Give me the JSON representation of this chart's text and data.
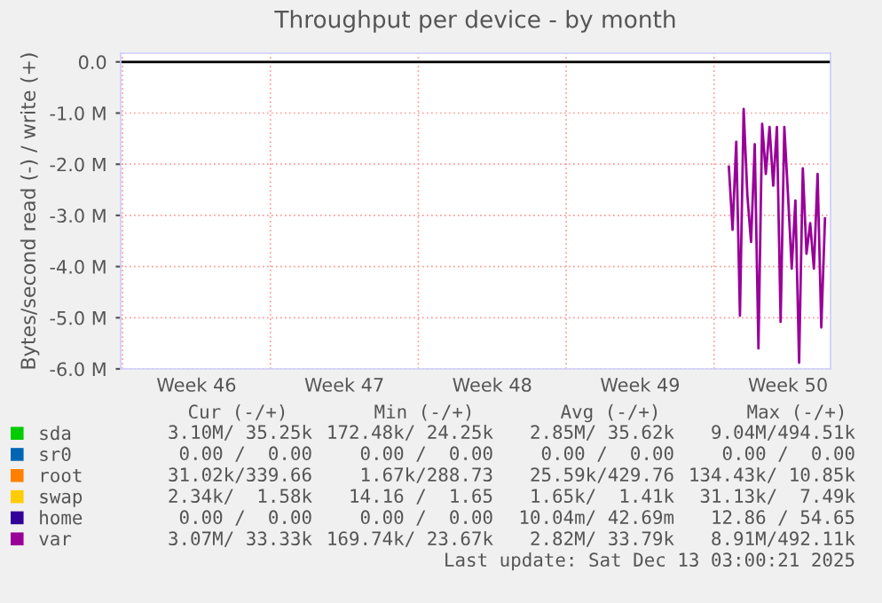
{
  "chart_data": {
    "type": "line",
    "title": "Throughput per device - by month",
    "ylabel": "Bytes/second read (-) / write (+)",
    "categories": [
      null,
      null,
      null,
      null,
      null,
      null,
      null,
      null,
      null,
      null,
      null,
      null,
      null,
      null,
      null,
      null,
      null,
      null,
      null,
      null,
      "Week 46",
      null,
      null,
      null,
      null,
      null,
      null,
      null,
      null,
      null,
      null,
      null,
      null,
      null,
      null,
      null,
      null,
      null,
      null,
      null,
      null,
      null,
      null,
      null,
      null,
      null,
      null,
      null,
      null,
      null,
      null,
      null,
      null,
      null,
      null,
      null,
      null,
      null,
      null,
      null,
      "Week 47",
      null,
      null,
      null,
      null,
      null,
      null,
      null,
      null,
      null,
      null,
      null,
      null,
      null,
      null,
      null,
      null,
      null,
      null,
      null,
      null,
      null,
      null,
      null,
      null,
      null,
      null,
      null,
      null,
      null,
      null,
      null,
      null,
      null,
      null,
      null,
      null,
      null,
      null,
      null,
      "Week 48",
      null,
      null,
      null,
      null,
      null,
      null,
      null,
      null,
      null,
      null,
      null,
      null,
      null,
      null,
      null,
      null,
      null,
      null,
      null,
      null,
      null,
      null,
      null,
      null,
      null,
      null,
      null,
      null,
      null,
      null,
      null,
      null,
      null,
      null,
      null,
      null,
      null,
      null,
      null,
      "Week 49",
      null,
      null,
      null,
      null,
      null,
      null,
      null,
      null,
      null,
      null,
      null,
      null,
      null,
      null,
      null,
      null,
      null,
      null,
      null,
      null,
      null,
      null,
      null,
      null,
      null,
      null,
      null,
      null,
      null,
      null,
      null,
      null,
      null,
      null,
      null,
      null,
      null,
      null,
      null,
      "Week 50",
      null,
      null,
      null,
      null,
      null,
      null,
      null,
      null,
      null,
      null,
      null
    ],
    "series": [
      {
        "name": "sda",
        "color": "#00cc00",
        "values": [
          null,
          null,
          null,
          null,
          null,
          null,
          null,
          null,
          null,
          null,
          null,
          null,
          null,
          null,
          null,
          null,
          null,
          null,
          null,
          null,
          null,
          null,
          null,
          null,
          null,
          null,
          null,
          null,
          null,
          null,
          null,
          null,
          null,
          null,
          null,
          null,
          null,
          null,
          null,
          null,
          null,
          null,
          null,
          null,
          null,
          null,
          null,
          null,
          null,
          null,
          null,
          null,
          null,
          null,
          null,
          null,
          null,
          null,
          null,
          null,
          null,
          null,
          null,
          null,
          null,
          null,
          null,
          null,
          null,
          null,
          null,
          null,
          null,
          null,
          null,
          null,
          null,
          null,
          null,
          null,
          null,
          null,
          null,
          null,
          null,
          null,
          null,
          null,
          null,
          null,
          null,
          null,
          null,
          null,
          null,
          null,
          null,
          null,
          null,
          null,
          null,
          null,
          null,
          null,
          null,
          null,
          null,
          null,
          null,
          null,
          null,
          null,
          null,
          null,
          null,
          null,
          null,
          null,
          null,
          null,
          null,
          null,
          null,
          null,
          null,
          null,
          null,
          null,
          null,
          null,
          null,
          null,
          null,
          null,
          null,
          null,
          null,
          null,
          null,
          null,
          null,
          null,
          null,
          null,
          null,
          null,
          null,
          null,
          null,
          null,
          null,
          null,
          null,
          null,
          null,
          null,
          null,
          null,
          null,
          null,
          null,
          null,
          null,
          null,
          null,
          null,
          null,
          null,
          null,
          null,
          null,
          null,
          null,
          null,
          null,
          null,
          null,
          null,
          null,
          null,
          null,
          null,
          null,
          null,
          null,
          null,
          null,
          null,
          null,
          null,
          null,
          null
        ]
      },
      {
        "name": "sr0",
        "color": "#0066b3",
        "values": [
          null,
          null,
          null,
          null,
          null,
          null,
          null,
          null,
          null,
          null,
          null,
          null,
          null,
          null,
          null,
          null,
          null,
          null,
          null,
          null,
          null,
          null,
          null,
          null,
          null,
          null,
          null,
          null,
          null,
          null,
          null,
          null,
          null,
          null,
          null,
          null,
          null,
          null,
          null,
          null,
          null,
          null,
          null,
          null,
          null,
          null,
          null,
          null,
          null,
          null,
          null,
          null,
          null,
          null,
          null,
          null,
          null,
          null,
          null,
          null,
          null,
          null,
          null,
          null,
          null,
          null,
          null,
          null,
          null,
          null,
          null,
          null,
          null,
          null,
          null,
          null,
          null,
          null,
          null,
          null,
          null,
          null,
          null,
          null,
          null,
          null,
          null,
          null,
          null,
          null,
          null,
          null,
          null,
          null,
          null,
          null,
          null,
          null,
          null,
          null,
          null,
          null,
          null,
          null,
          null,
          null,
          null,
          null,
          null,
          null,
          null,
          null,
          null,
          null,
          null,
          null,
          null,
          null,
          null,
          null,
          null,
          null,
          null,
          null,
          null,
          null,
          null,
          null,
          null,
          null,
          null,
          null,
          null,
          null,
          null,
          null,
          null,
          null,
          null,
          null,
          null,
          null,
          null,
          null,
          null,
          null,
          null,
          null,
          null,
          null,
          null,
          null,
          null,
          null,
          null,
          null,
          null,
          null,
          null,
          null,
          null,
          null,
          null,
          null,
          null,
          null,
          null,
          null,
          null,
          null,
          null,
          null,
          null,
          null,
          null,
          null,
          null,
          null,
          null,
          null,
          null,
          null,
          null,
          null,
          null,
          null,
          null,
          null,
          null,
          null,
          null,
          null
        ]
      },
      {
        "name": "root",
        "color": "#ff8000",
        "values": [
          null,
          null,
          null,
          null,
          null,
          null,
          null,
          null,
          null,
          null,
          null,
          null,
          null,
          null,
          null,
          null,
          null,
          null,
          null,
          null,
          null,
          null,
          null,
          null,
          null,
          null,
          null,
          null,
          null,
          null,
          null,
          null,
          null,
          null,
          null,
          null,
          null,
          null,
          null,
          null,
          null,
          null,
          null,
          null,
          null,
          null,
          null,
          null,
          null,
          null,
          null,
          null,
          null,
          null,
          null,
          null,
          null,
          null,
          null,
          null,
          null,
          null,
          null,
          null,
          null,
          null,
          null,
          null,
          null,
          null,
          null,
          null,
          null,
          null,
          null,
          null,
          null,
          null,
          null,
          null,
          null,
          null,
          null,
          null,
          null,
          null,
          null,
          null,
          null,
          null,
          null,
          null,
          null,
          null,
          null,
          null,
          null,
          null,
          null,
          null,
          null,
          null,
          null,
          null,
          null,
          null,
          null,
          null,
          null,
          null,
          null,
          null,
          null,
          null,
          null,
          null,
          null,
          null,
          null,
          null,
          null,
          null,
          null,
          null,
          null,
          null,
          null,
          null,
          null,
          null,
          null,
          null,
          null,
          null,
          null,
          null,
          null,
          null,
          null,
          null,
          null,
          null,
          null,
          null,
          null,
          null,
          null,
          null,
          null,
          null,
          null,
          null,
          null,
          null,
          null,
          null,
          null,
          null,
          null,
          null,
          null,
          null,
          null,
          null,
          null,
          null,
          null,
          null,
          null,
          null,
          null,
          null,
          null,
          null,
          null,
          null,
          null,
          null,
          null,
          null,
          null,
          null,
          null,
          null,
          null,
          null,
          null,
          null,
          null,
          null,
          null,
          null
        ]
      },
      {
        "name": "swap",
        "color": "#ffcc00",
        "values": [
          null,
          null,
          null,
          null,
          null,
          null,
          null,
          null,
          null,
          null,
          null,
          null,
          null,
          null,
          null,
          null,
          null,
          null,
          null,
          null,
          null,
          null,
          null,
          null,
          null,
          null,
          null,
          null,
          null,
          null,
          null,
          null,
          null,
          null,
          null,
          null,
          null,
          null,
          null,
          null,
          null,
          null,
          null,
          null,
          null,
          null,
          null,
          null,
          null,
          null,
          null,
          null,
          null,
          null,
          null,
          null,
          null,
          null,
          null,
          null,
          null,
          null,
          null,
          null,
          null,
          null,
          null,
          null,
          null,
          null,
          null,
          null,
          null,
          null,
          null,
          null,
          null,
          null,
          null,
          null,
          null,
          null,
          null,
          null,
          null,
          null,
          null,
          null,
          null,
          null,
          null,
          null,
          null,
          null,
          null,
          null,
          null,
          null,
          null,
          null,
          null,
          null,
          null,
          null,
          null,
          null,
          null,
          null,
          null,
          null,
          null,
          null,
          null,
          null,
          null,
          null,
          null,
          null,
          null,
          null,
          null,
          null,
          null,
          null,
          null,
          null,
          null,
          null,
          null,
          null,
          null,
          null,
          null,
          null,
          null,
          null,
          null,
          null,
          null,
          null,
          null,
          null,
          null,
          null,
          null,
          null,
          null,
          null,
          null,
          null,
          null,
          null,
          null,
          null,
          null,
          null,
          null,
          null,
          null,
          null,
          null,
          null,
          null,
          null,
          null,
          null,
          null,
          null,
          null,
          null,
          null,
          null,
          null,
          null,
          null,
          null,
          null,
          null,
          null,
          null,
          null,
          null,
          null,
          null,
          null,
          null,
          null,
          null,
          null,
          null,
          null,
          null
        ]
      },
      {
        "name": "home",
        "color": "#330099",
        "values": [
          null,
          null,
          null,
          null,
          null,
          null,
          null,
          null,
          null,
          null,
          null,
          null,
          null,
          null,
          null,
          null,
          null,
          null,
          null,
          null,
          null,
          null,
          null,
          null,
          null,
          null,
          null,
          null,
          null,
          null,
          null,
          null,
          null,
          null,
          null,
          null,
          null,
          null,
          null,
          null,
          null,
          null,
          null,
          null,
          null,
          null,
          null,
          null,
          null,
          null,
          null,
          null,
          null,
          null,
          null,
          null,
          null,
          null,
          null,
          null,
          null,
          null,
          null,
          null,
          null,
          null,
          null,
          null,
          null,
          null,
          null,
          null,
          null,
          null,
          null,
          null,
          null,
          null,
          null,
          null,
          null,
          null,
          null,
          null,
          null,
          null,
          null,
          null,
          null,
          null,
          null,
          null,
          null,
          null,
          null,
          null,
          null,
          null,
          null,
          null,
          null,
          null,
          null,
          null,
          null,
          null,
          null,
          null,
          null,
          null,
          null,
          null,
          null,
          null,
          null,
          null,
          null,
          null,
          null,
          null,
          null,
          null,
          null,
          null,
          null,
          null,
          null,
          null,
          null,
          null,
          null,
          null,
          null,
          null,
          null,
          null,
          null,
          null,
          null,
          null,
          null,
          null,
          null,
          null,
          null,
          null,
          null,
          null,
          null,
          null,
          null,
          null,
          null,
          null,
          null,
          null,
          null,
          null,
          null,
          null,
          null,
          null,
          null,
          null,
          null,
          null,
          null,
          null,
          null,
          null,
          null,
          null,
          null,
          null,
          null,
          null,
          null,
          null,
          null,
          null,
          null,
          null,
          null,
          null,
          null,
          null,
          null,
          null,
          null,
          null,
          null,
          null
        ]
      },
      {
        "name": "var",
        "color": "#990099",
        "values": [
          null,
          null,
          null,
          null,
          null,
          null,
          null,
          null,
          null,
          null,
          null,
          null,
          null,
          null,
          null,
          null,
          null,
          null,
          null,
          null,
          null,
          null,
          null,
          null,
          null,
          null,
          null,
          null,
          null,
          null,
          null,
          null,
          null,
          null,
          null,
          null,
          null,
          null,
          null,
          null,
          null,
          null,
          null,
          null,
          null,
          null,
          null,
          null,
          null,
          null,
          null,
          null,
          null,
          null,
          null,
          null,
          null,
          null,
          null,
          null,
          null,
          null,
          null,
          null,
          null,
          null,
          null,
          null,
          null,
          null,
          null,
          null,
          null,
          null,
          null,
          null,
          null,
          null,
          null,
          null,
          null,
          null,
          null,
          null,
          null,
          null,
          null,
          null,
          null,
          null,
          null,
          null,
          null,
          null,
          null,
          null,
          null,
          null,
          null,
          null,
          null,
          null,
          null,
          null,
          null,
          null,
          null,
          null,
          null,
          null,
          null,
          null,
          null,
          null,
          null,
          null,
          null,
          null,
          null,
          null,
          null,
          null,
          null,
          null,
          null,
          null,
          null,
          null,
          null,
          null,
          null,
          null,
          null,
          null,
          null,
          null,
          null,
          null,
          null,
          null,
          null,
          null,
          null,
          null,
          null,
          null,
          null,
          null,
          null,
          null,
          null,
          null,
          null,
          null,
          null,
          null,
          null,
          null,
          null,
          null,
          null,
          null,
          null,
          null,
          -2050000,
          -3280000,
          -1560000,
          -4960000,
          -920000,
          -2600000,
          -3520000,
          -1610000,
          -5600000,
          -1210000,
          -2190000,
          -1270000,
          -2420000,
          -1270000,
          -5080000,
          -1270000,
          -2600000,
          -4040000,
          -2710000,
          -5880000,
          -2080000,
          -3750000,
          -3150000,
          -4040000,
          -2190000,
          -5190000,
          -3060000,
          null
        ]
      }
    ],
    "ylim": [
      -6000000,
      170000
    ],
    "yticks": [
      {
        "value": -6000000,
        "label": "-6.0 M"
      },
      {
        "value": -5000000,
        "label": "-5.0 M"
      },
      {
        "value": -4000000,
        "label": "-4.0 M"
      },
      {
        "value": -3000000,
        "label": "-3.0 M"
      },
      {
        "value": -2000000,
        "label": "-2.0 M"
      },
      {
        "value": -1000000,
        "label": "-1.0 M"
      },
      {
        "value": 0,
        "label": "0.0"
      }
    ],
    "ref_lines": [
      {
        "axis": "y",
        "value": 0,
        "color": "#000000"
      }
    ],
    "grid": true,
    "legend": "bottom",
    "marker": "none",
    "line_style": "solid",
    "annotations": [
      "Cur (-/+)",
      "Min (-/+)",
      "Avg (-/+)",
      "Max (-/+)",
      "3.10M/ 35.25k",
      "172.48k/ 24.25k",
      "2.85M/ 35.62k",
      "9.04M/494.51k",
      "0.00 /  0.00",
      "0.00 /  0.00",
      "0.00 /  0.00",
      "0.00 /  0.00",
      "31.02k/339.66",
      "1.67k/288.73",
      "25.59k/429.76",
      "134.43k/ 10.85k",
      "2.34k/  1.58k",
      "14.16 /  1.65",
      "1.65k/  1.41k",
      "31.13k/  7.49k",
      "0.00 /  0.00",
      "0.00 /  0.00",
      "10.04m/ 42.69m",
      "12.86 / 54.65",
      "3.07M/ 33.33k",
      "169.74k/ 23.67k",
      "2.82M/ 33.79k",
      "8.91M/492.11k",
      "Last update: Sat Dec 13 03:00:21 2025"
    ]
  }
}
